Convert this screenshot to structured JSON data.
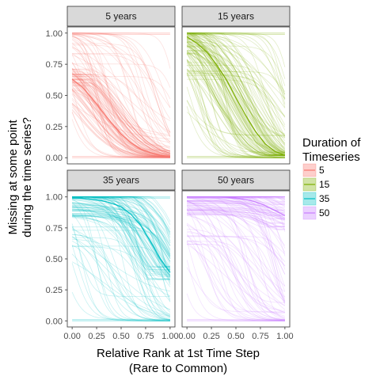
{
  "chart_data": {
    "type": "line",
    "layout": "facet-grid-2x2",
    "xlabel_lines": [
      "Relative Rank at 1st Time Step",
      "(Rare to Common)"
    ],
    "ylabel_lines": [
      "Missing at some point",
      "during the time series?"
    ],
    "xlim": [
      0,
      1
    ],
    "ylim": [
      0,
      1
    ],
    "x_ticks": [
      0.0,
      0.25,
      0.5,
      0.75,
      1.0
    ],
    "x_tick_labels": [
      "0.00",
      "0.25",
      "0.50",
      "0.75",
      "1.00"
    ],
    "y_ticks": [
      0.0,
      0.25,
      0.5,
      0.75,
      1.0
    ],
    "y_tick_labels": [
      "0.00",
      "0.25",
      "0.50",
      "0.75",
      "1.00"
    ],
    "grid": false,
    "legend": {
      "title_lines": [
        "Duration of",
        "Timeseries"
      ],
      "position": "right",
      "entries": [
        {
          "label": "5",
          "color": "#F8766D"
        },
        {
          "label": "15",
          "color": "#7CAE00"
        },
        {
          "label": "35",
          "color": "#00BFC4"
        },
        {
          "label": "50",
          "color": "#C77CFF"
        }
      ]
    },
    "facets": [
      {
        "strip": "5 years",
        "color": "#F8766D",
        "mean_curve": {
          "x": [
            0,
            0.1,
            0.2,
            0.3,
            0.4,
            0.5,
            0.6,
            0.7,
            0.8,
            0.9,
            1.0
          ],
          "y": [
            0.63,
            0.57,
            0.48,
            0.38,
            0.28,
            0.19,
            0.12,
            0.07,
            0.04,
            0.02,
            0.01
          ]
        }
      },
      {
        "strip": "15 years",
        "color": "#7CAE00",
        "mean_curve": {
          "x": [
            0,
            0.1,
            0.2,
            0.3,
            0.4,
            0.5,
            0.6,
            0.7,
            0.8,
            0.9,
            1.0
          ],
          "y": [
            0.97,
            0.92,
            0.85,
            0.75,
            0.63,
            0.48,
            0.34,
            0.21,
            0.11,
            0.05,
            0.02
          ]
        }
      },
      {
        "strip": "35 years",
        "color": "#00BFC4",
        "mean_curve": {
          "x": [
            0,
            0.1,
            0.2,
            0.3,
            0.4,
            0.5,
            0.6,
            0.7,
            0.8,
            0.9,
            1.0
          ],
          "y": [
            0.99,
            0.99,
            0.98,
            0.97,
            0.95,
            0.92,
            0.86,
            0.77,
            0.64,
            0.5,
            0.39
          ]
        }
      },
      {
        "strip": "50 years",
        "color": "#C77CFF",
        "mean_curve": {
          "x": [
            0,
            0.1,
            0.2,
            0.3,
            0.4,
            0.5,
            0.6,
            0.7,
            0.8,
            0.9,
            1.0
          ],
          "y": [
            1.0,
            1.0,
            1.0,
            1.0,
            1.0,
            0.99,
            0.98,
            0.96,
            0.93,
            0.89,
            0.85
          ]
        }
      }
    ]
  }
}
